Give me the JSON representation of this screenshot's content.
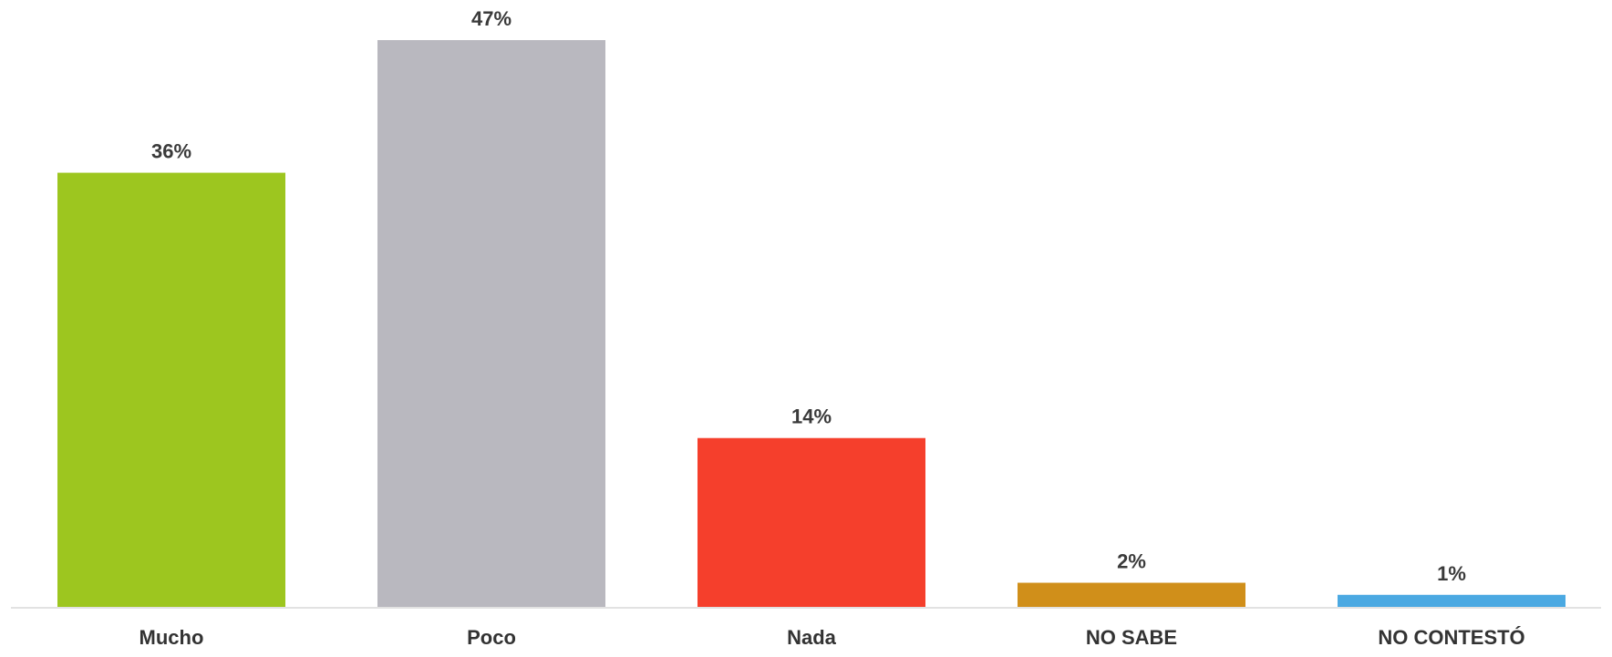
{
  "chart_data": {
    "type": "bar",
    "title": "",
    "xlabel": "",
    "ylabel": "",
    "ylim": [
      0,
      47
    ],
    "grid": false,
    "legend": "none",
    "value_suffix": "%",
    "categories": [
      "Mucho",
      "Poco",
      "Nada",
      "NO SABE",
      "NO CONTESTÓ"
    ],
    "series": [
      {
        "values": [
          36,
          47,
          14,
          2,
          1
        ],
        "colors": [
          "#9dc61f",
          "#b9b8bf",
          "#f53f2c",
          "#d08f1a",
          "#4ba9e2"
        ]
      }
    ]
  }
}
